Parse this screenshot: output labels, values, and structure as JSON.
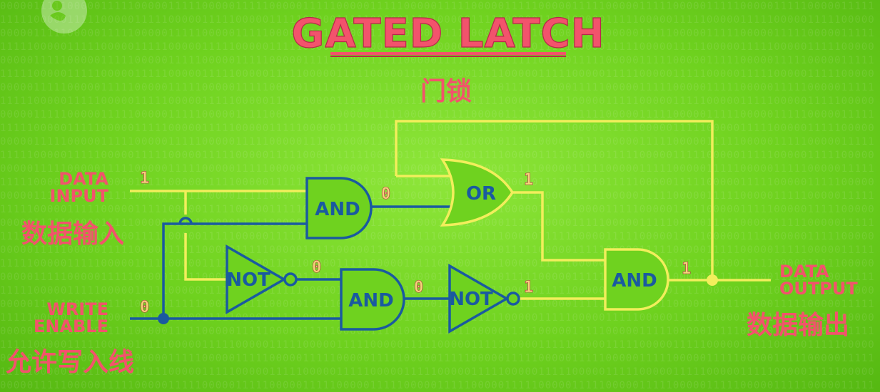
{
  "title": "GATED LATCH",
  "title_cn": "门锁",
  "inputs": {
    "data_input_line1": "DATA",
    "data_input_line2": "INPUT",
    "data_input_cn": "数据输入",
    "data_input_bit": "1",
    "write_enable_line1": "WRITE",
    "write_enable_line2": "ENABLE",
    "write_enable_cn": "允许写入线",
    "write_enable_bit": "0"
  },
  "output": {
    "line1": "DATA",
    "line2": "OUTPUT",
    "cn": "数据输出",
    "bit": "1"
  },
  "gates": {
    "and_top": "AND",
    "or": "OR",
    "not_1": "NOT",
    "and_mid": "AND",
    "not_2": "NOT",
    "and_out": "AND"
  },
  "bits": {
    "and_top_out": "0",
    "or_out": "1",
    "not_1_out": "0",
    "and_mid_out": "0",
    "not_2_out": "1",
    "and_out_out": "1"
  },
  "colors": {
    "background": "#6fd21f",
    "wire_on": "#f2ee5c",
    "wire_off": "#1a5aa0",
    "label": "#f2536c"
  }
}
